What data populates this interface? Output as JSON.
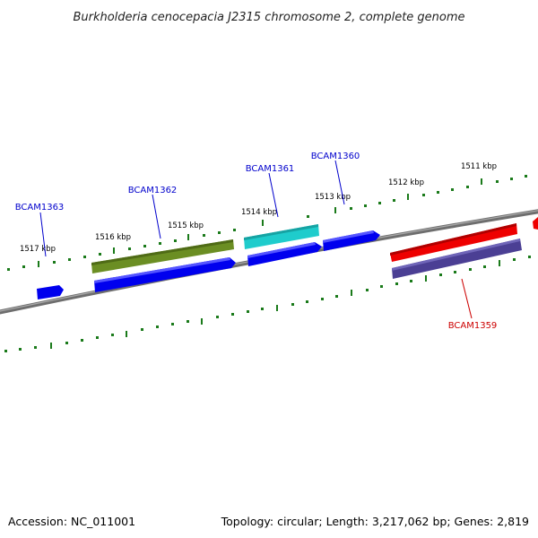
{
  "title": "Burkholderia cenocepacia J2315 chromosome 2, complete genome",
  "footer": {
    "accession": "Accession: NC_011001",
    "summary": "Topology: circular; Length: 3,217,062 bp; Genes: 2,819"
  },
  "ticks": [
    {
      "label": "1517 kbp"
    },
    {
      "label": "1516 kbp"
    },
    {
      "label": "1515 kbp"
    },
    {
      "label": "1514 kbp"
    },
    {
      "label": "1513 kbp"
    },
    {
      "label": "1512 kbp"
    },
    {
      "label": "1511 kbp"
    }
  ],
  "genes": [
    {
      "label": "BCAM1363",
      "color": "#0000cc"
    },
    {
      "label": "BCAM1362",
      "color": "#0000cc"
    },
    {
      "label": "BCAM1361",
      "color": "#0000cc"
    },
    {
      "label": "BCAM1360",
      "color": "#0000cc"
    },
    {
      "label": "BCAM1359",
      "color": "#cc0000"
    }
  ],
  "colors": {
    "backbone": "#808080",
    "tick": "#1a7a1a",
    "forward_gene": "#0000ee",
    "reverse_gene": "#4b3f94",
    "olive_feature": "#6b8e23",
    "cyan_feature": "#1fcccc",
    "red_feature": "#ee0000"
  }
}
